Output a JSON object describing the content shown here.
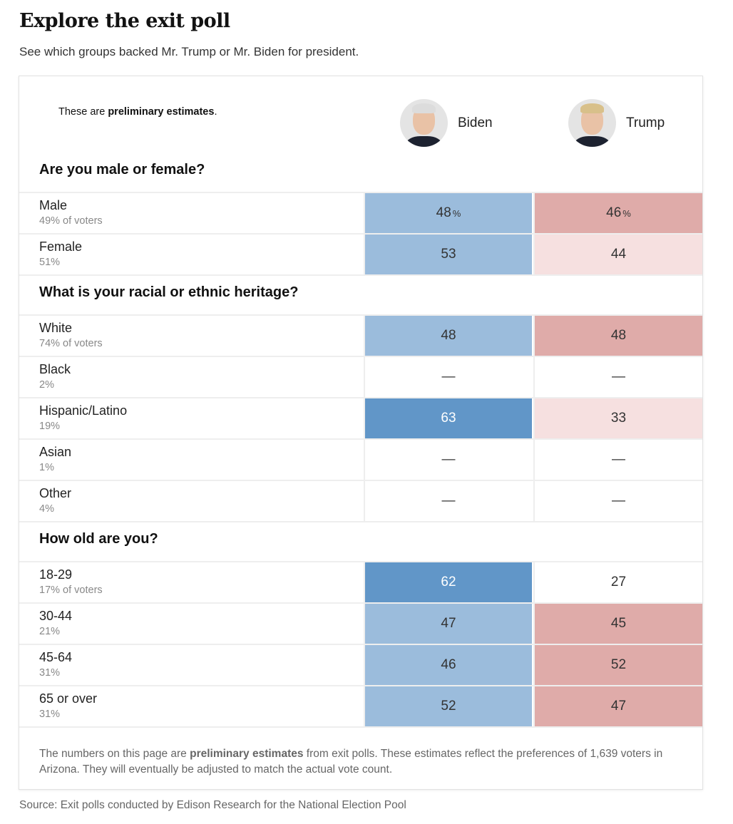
{
  "title": "Explore the exit poll",
  "subtitle": "See which groups backed Mr. Trump or Mr. Biden for president.",
  "prelim": {
    "pre": "These are ",
    "bold": "preliminary estimates",
    "post": "."
  },
  "candidates": [
    {
      "name": "Biden",
      "hair": "#dcdcdc"
    },
    {
      "name": "Trump",
      "hair": "#d8c08a"
    }
  ],
  "colors": {
    "dark_blue": "#6196c8",
    "blue": "#9bbcdc",
    "red": "#dfaba9",
    "light_red": "#f6e0e0"
  },
  "sections": [
    {
      "question": "Are you male or female?",
      "rows": [
        {
          "label": "Male",
          "share": "49% of voters",
          "biden": "48",
          "trump": "46",
          "bl": "midb",
          "tl": "midr",
          "pct": true
        },
        {
          "label": "Female",
          "share": "51%",
          "biden": "53",
          "trump": "44",
          "bl": "midb",
          "tl": "lightr"
        }
      ]
    },
    {
      "question": "What is your racial or ethnic heritage?",
      "rows": [
        {
          "label": "White",
          "share": "74% of voters",
          "biden": "48",
          "trump": "48",
          "bl": "midb",
          "tl": "midr"
        },
        {
          "label": "Black",
          "share": "2%",
          "biden": "—",
          "trump": "—",
          "bl": "",
          "tl": ""
        },
        {
          "label": "Hispanic/Latino",
          "share": "19%",
          "biden": "63",
          "trump": "33",
          "bl": "dark",
          "tl": "lightr"
        },
        {
          "label": "Asian",
          "share": "1%",
          "biden": "—",
          "trump": "—",
          "bl": "",
          "tl": ""
        },
        {
          "label": "Other",
          "share": "4%",
          "biden": "—",
          "trump": "—",
          "bl": "",
          "tl": ""
        }
      ]
    },
    {
      "question": "How old are you?",
      "rows": [
        {
          "label": "18-29",
          "share": "17% of voters",
          "biden": "62",
          "trump": "27",
          "bl": "dark",
          "tl": ""
        },
        {
          "label": "30-44",
          "share": "21%",
          "biden": "47",
          "trump": "45",
          "bl": "midb",
          "tl": "midr"
        },
        {
          "label": "45-64",
          "share": "31%",
          "biden": "46",
          "trump": "52",
          "bl": "midb",
          "tl": "midr"
        },
        {
          "label": "65 or over",
          "share": "31%",
          "biden": "52",
          "trump": "47",
          "bl": "midb",
          "tl": "midr"
        }
      ]
    }
  ],
  "footnote": {
    "pre": "The numbers on this page are ",
    "bold": "preliminary estimates",
    "post": " from exit polls. These estimates reflect the preferences of 1,639 voters in Arizona. They will eventually be adjusted to match the actual vote count."
  },
  "source": "Source: Exit polls conducted by Edison Research for the National Election Pool",
  "pct_symbol": "%"
}
